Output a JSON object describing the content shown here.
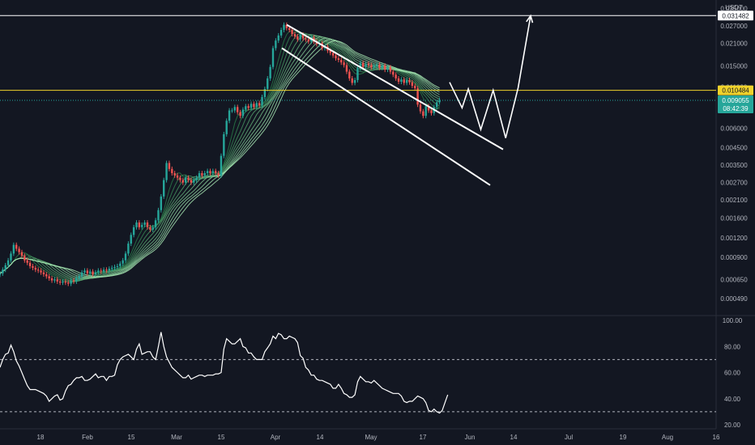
{
  "chart_data": [
    {
      "type": "candlestick",
      "title": "",
      "quote_unit": "USDT",
      "y_scale": "log",
      "ylim": [
        0.00043,
        0.036
      ],
      "y_ticks": [
        "0.035000",
        "0.027000",
        "0.021000",
        "0.015000",
        "0.011000",
        "0.006000",
        "0.004500",
        "0.003500",
        "0.002700",
        "0.002100",
        "0.001600",
        "0.001200",
        "0.000900",
        "0.000650",
        "0.000490"
      ],
      "y_tick_values": [
        0.035,
        0.027,
        0.021,
        0.015,
        0.011,
        0.006,
        0.0045,
        0.0035,
        0.0027,
        0.0021,
        0.0016,
        0.0012,
        0.0009,
        0.00065,
        0.00049
      ],
      "x_labels": [
        "18",
        "Feb",
        "15",
        "Mar",
        "15",
        "Apr",
        "14",
        "May",
        "17",
        "Jun",
        "14",
        "Jul",
        "19",
        "Aug",
        "16"
      ],
      "horizontal_levels": [
        {
          "value": 0.031482,
          "label": "0.031482",
          "color": "#ffffff"
        },
        {
          "value": 0.010484,
          "label": "0.010484",
          "color": "#f0d22b"
        }
      ],
      "last_price": {
        "value": 0.009055,
        "label": "0.009055",
        "countdown": "08:42:39",
        "color": "#26a69a"
      },
      "candle_closes": [
        0.00071,
        0.00075,
        0.0008,
        0.00086,
        0.00095,
        0.00108,
        0.00102,
        0.00097,
        0.00092,
        0.00086,
        0.00083,
        0.00079,
        0.00077,
        0.00075,
        0.00074,
        0.00072,
        0.0007,
        0.00068,
        0.00066,
        0.00064,
        0.00065,
        0.00063,
        0.00062,
        0.00063,
        0.00062,
        0.00061,
        0.00064,
        0.00063,
        0.00066,
        0.00068,
        0.00072,
        0.00074,
        0.00071,
        0.00073,
        0.0007,
        0.00072,
        0.00074,
        0.00073,
        0.00075,
        0.00074,
        0.00076,
        0.00077,
        0.00078,
        0.00079,
        0.00082,
        0.00086,
        0.00095,
        0.0011,
        0.00125,
        0.0014,
        0.0015,
        0.0014,
        0.00145,
        0.0015,
        0.0014,
        0.00135,
        0.0014,
        0.00155,
        0.0018,
        0.0022,
        0.0028,
        0.0036,
        0.0033,
        0.0031,
        0.003,
        0.0029,
        0.0028,
        0.0027,
        0.0029,
        0.0028,
        0.0027,
        0.0028,
        0.0029,
        0.0031,
        0.003,
        0.0031,
        0.0032,
        0.0031,
        0.0032,
        0.0031,
        0.003,
        0.004,
        0.0055,
        0.0067,
        0.0078,
        0.0078,
        0.0082,
        0.0076,
        0.0072,
        0.0079,
        0.0083,
        0.0081,
        0.0086,
        0.0082,
        0.0087,
        0.0084,
        0.0095,
        0.0107,
        0.0125,
        0.0148,
        0.0195,
        0.0218,
        0.0235,
        0.0255,
        0.0275,
        0.0262,
        0.0255,
        0.024,
        0.0232,
        0.0222,
        0.0238,
        0.0225,
        0.0222,
        0.0215,
        0.0228,
        0.0215,
        0.0207,
        0.021,
        0.0195,
        0.02,
        0.0188,
        0.0182,
        0.0175,
        0.0168,
        0.0164,
        0.0158,
        0.0152,
        0.0138,
        0.0125,
        0.0117,
        0.0122,
        0.0145,
        0.0157,
        0.0148,
        0.0155,
        0.0152,
        0.0147,
        0.015,
        0.0153,
        0.0146,
        0.0151,
        0.0142,
        0.0147,
        0.0138,
        0.0132,
        0.0125,
        0.0119,
        0.0123,
        0.0117,
        0.0122,
        0.0118,
        0.0112,
        0.0108,
        0.0085,
        0.0077,
        0.0072,
        0.0083,
        0.0078,
        0.0075,
        0.0082,
        0.0088,
        0.0091
      ],
      "projection_path": [
        [
          0.0097,
          0.0118
        ],
        [
          0.0099,
          0.0081
        ],
        [
          0.01,
          0.0107
        ],
        [
          0.0102,
          0.0059
        ],
        [
          0.0104,
          0.0105
        ],
        [
          0.0106,
          0.0052
        ],
        [
          0.0108,
          0.0109
        ],
        [
          0.011,
          0.0314
        ]
      ],
      "channel_lines": [
        {
          "from": 0.0275,
          "to": 0.0044
        },
        {
          "from": 0.0195,
          "to": 0.0026
        }
      ]
    },
    {
      "type": "line",
      "title": "",
      "ylim": [
        20,
        100
      ],
      "y_ticks": [
        "100.00",
        "80.00",
        "60.00",
        "40.00",
        "20.00"
      ],
      "y_tick_values": [
        100,
        80,
        60,
        40,
        20
      ],
      "levels": [
        70,
        30
      ],
      "values": [
        64,
        70,
        74,
        75,
        81,
        76,
        69,
        65,
        60,
        55,
        50,
        47,
        47,
        47,
        46,
        45,
        44,
        42,
        38,
        40,
        42,
        43,
        39,
        40,
        46,
        50,
        51,
        54,
        56,
        56,
        57,
        54,
        54,
        55,
        57,
        59,
        56,
        57,
        57,
        54,
        57,
        57,
        58,
        66,
        70,
        72,
        73,
        74,
        72,
        70,
        78,
        82,
        74,
        75,
        76,
        76,
        72,
        70,
        80,
        91,
        80,
        72,
        68,
        64,
        62,
        60,
        58,
        56,
        56,
        58,
        55,
        56,
        57,
        58,
        58,
        57,
        58,
        58,
        58,
        59,
        59,
        60,
        78,
        86,
        84,
        82,
        82,
        84,
        86,
        80,
        79,
        75,
        75,
        72,
        70,
        70,
        70,
        76,
        79,
        82,
        88,
        86,
        90,
        89,
        86,
        86,
        88,
        87,
        86,
        83,
        73,
        71,
        64,
        62,
        58,
        58,
        55,
        54,
        54,
        53,
        52,
        51,
        48,
        48,
        51,
        48,
        44,
        43,
        41,
        41,
        43,
        53,
        57,
        55,
        53,
        53,
        52,
        54,
        52,
        50,
        48,
        47,
        46,
        45,
        44,
        44,
        44,
        42,
        38,
        37,
        38,
        38,
        40,
        42,
        41,
        40,
        37,
        31,
        30,
        32,
        30,
        29,
        31,
        37,
        43
      ]
    }
  ]
}
